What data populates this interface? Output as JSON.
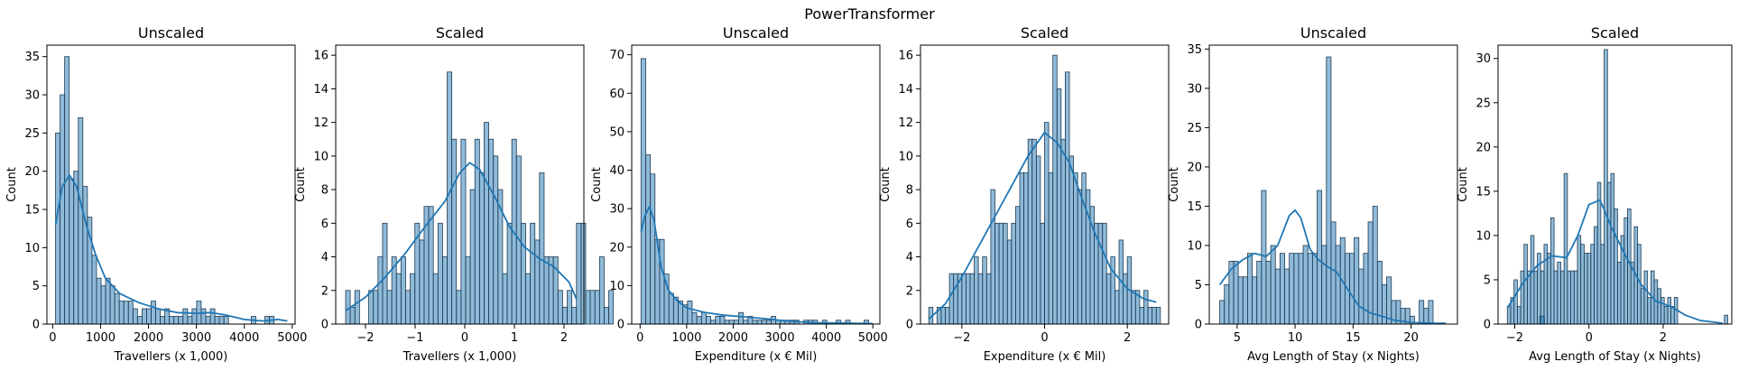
{
  "figure": {
    "suptitle": "PowerTransformer"
  },
  "colors": {
    "bar_fill": "#1f77b4",
    "bar_edge": "#1f3a52",
    "kde": "#1f77b4"
  },
  "chart_data": [
    {
      "type": "bar",
      "title": "Unscaled",
      "xlabel": "Travellers (x 1,000)",
      "ylabel": "Count",
      "xlim": [
        -120,
        5060
      ],
      "ylim": [
        0,
        36.5
      ],
      "xticks": [
        0,
        1000,
        2000,
        3000,
        4000,
        5000
      ],
      "yticks": [
        0,
        5,
        10,
        15,
        20,
        25,
        30,
        35
      ],
      "bin_start": 60,
      "bin_width": 95,
      "counts": [
        25,
        30,
        35,
        19,
        20,
        27,
        18,
        14,
        9,
        6,
        5,
        6,
        5,
        4,
        3,
        3,
        3,
        2,
        1,
        2,
        2,
        3,
        2,
        1,
        2,
        1,
        1,
        1,
        2,
        1,
        2,
        3,
        2,
        1,
        2,
        1,
        1,
        1,
        0,
        0,
        0,
        0,
        0,
        1,
        0,
        0,
        1,
        1
      ],
      "kde": [
        [
          60,
          13
        ],
        [
          200,
          18
        ],
        [
          350,
          19.5
        ],
        [
          500,
          18
        ],
        [
          700,
          13
        ],
        [
          900,
          9
        ],
        [
          1100,
          6
        ],
        [
          1400,
          4
        ],
        [
          1800,
          2.8
        ],
        [
          2200,
          2
        ],
        [
          2600,
          1.5
        ],
        [
          3000,
          1.4
        ],
        [
          3300,
          1.5
        ],
        [
          3600,
          1.2
        ],
        [
          4000,
          0.6
        ],
        [
          4400,
          0.4
        ],
        [
          4700,
          0.6
        ],
        [
          4900,
          0.4
        ]
      ]
    },
    {
      "type": "bar",
      "title": "Scaled",
      "xlabel": "Travellers (x 1,000)",
      "ylabel": "Count",
      "xlim": [
        -2.6,
        2.4
      ],
      "ylim": [
        0,
        16.6
      ],
      "xticks": [
        -2,
        -1,
        0,
        1,
        2
      ],
      "yticks": [
        0,
        2,
        4,
        6,
        8,
        10,
        12,
        14,
        16
      ],
      "bin_start": -2.4,
      "bin_width": 0.093,
      "counts": [
        2,
        1,
        2,
        0,
        0,
        2,
        2,
        4,
        6,
        2,
        4,
        3,
        4,
        2,
        3,
        6,
        5,
        7,
        7,
        3,
        6,
        4,
        15,
        11,
        2,
        11,
        4,
        8,
        11,
        9,
        12,
        11,
        10,
        8,
        3,
        6,
        11,
        10,
        6,
        3,
        6,
        5,
        9,
        4,
        4,
        4,
        2,
        1,
        2,
        1,
        6,
        6,
        2,
        2,
        2,
        4,
        1,
        2
      ],
      "kde": [
        [
          -2.4,
          0.8
        ],
        [
          -2.0,
          1.6
        ],
        [
          -1.6,
          2.8
        ],
        [
          -1.2,
          4.2
        ],
        [
          -0.8,
          5.8
        ],
        [
          -0.4,
          7.3
        ],
        [
          -0.1,
          9
        ],
        [
          0.1,
          9.6
        ],
        [
          0.3,
          9.2
        ],
        [
          0.6,
          7.6
        ],
        [
          0.9,
          5.8
        ],
        [
          1.2,
          4.6
        ],
        [
          1.5,
          3.9
        ],
        [
          1.8,
          3.4
        ],
        [
          2.1,
          2.5
        ],
        [
          2.25,
          1.5
        ]
      ]
    },
    {
      "type": "bar",
      "title": "Unscaled",
      "xlabel": "Expenditure (x € Mil)",
      "ylabel": "Count",
      "xlim": [
        -180,
        5150
      ],
      "ylim": [
        0,
        72.5
      ],
      "xticks": [
        0,
        1000,
        2000,
        3000,
        4000,
        5000
      ],
      "yticks": [
        0,
        10,
        20,
        30,
        40,
        50,
        60,
        70
      ],
      "bin_start": 20,
      "bin_width": 99.8,
      "counts": [
        69,
        44,
        39,
        22,
        22,
        13,
        8,
        7,
        6,
        5,
        6,
        3,
        2,
        3,
        2,
        1,
        2,
        2,
        1,
        1,
        1,
        3,
        1,
        2,
        1,
        1,
        1,
        1,
        2,
        1,
        1,
        1,
        1,
        1,
        0,
        1,
        1,
        1,
        0,
        1,
        0,
        0,
        1,
        0,
        1,
        0,
        0,
        0,
        1
      ],
      "kde": [
        [
          20,
          24
        ],
        [
          100,
          28
        ],
        [
          200,
          30.5
        ],
        [
          300,
          27
        ],
        [
          450,
          15
        ],
        [
          600,
          9
        ],
        [
          800,
          6
        ],
        [
          1000,
          4.2
        ],
        [
          1400,
          3
        ],
        [
          1800,
          2.3
        ],
        [
          2200,
          1.9
        ],
        [
          2600,
          1.5
        ],
        [
          3000,
          1
        ],
        [
          3400,
          0.6
        ],
        [
          3800,
          0.3
        ],
        [
          4200,
          0.3
        ],
        [
          4600,
          0.2
        ],
        [
          5000,
          0.1
        ]
      ]
    },
    {
      "type": "bar",
      "title": "Scaled",
      "xlabel": "Expenditure (x € Mil)",
      "ylabel": "Count",
      "xlim": [
        -3.0,
        3.0
      ],
      "ylim": [
        0,
        16.6
      ],
      "xticks": [
        -2,
        0,
        2
      ],
      "yticks": [
        0,
        2,
        4,
        6,
        8,
        10,
        12,
        14,
        16
      ],
      "bin_start": -2.8,
      "bin_width": 0.1,
      "counts": [
        1,
        0,
        1,
        1,
        1,
        3,
        3,
        3,
        3,
        3,
        3,
        4,
        3,
        4,
        3,
        8,
        6,
        6,
        6,
        5,
        6,
        7,
        9,
        9,
        11,
        11,
        10,
        6,
        12,
        9,
        16,
        14,
        11,
        15,
        10,
        9,
        8,
        9,
        8,
        7,
        6,
        6,
        6,
        3,
        4,
        2,
        5,
        3,
        4,
        2,
        2,
        1,
        2,
        1,
        1,
        1
      ],
      "kde": [
        [
          -2.8,
          0.3
        ],
        [
          -2.4,
          1.2
        ],
        [
          -2.0,
          2.8
        ],
        [
          -1.6,
          4.6
        ],
        [
          -1.2,
          6.4
        ],
        [
          -0.8,
          8.2
        ],
        [
          -0.4,
          10
        ],
        [
          0,
          11.4
        ],
        [
          0.3,
          10.8
        ],
        [
          0.6,
          9.6
        ],
        [
          0.9,
          7.5
        ],
        [
          1.2,
          5.5
        ],
        [
          1.6,
          3.3
        ],
        [
          2.0,
          2.1
        ],
        [
          2.4,
          1.5
        ],
        [
          2.7,
          1.3
        ]
      ]
    },
    {
      "type": "bar",
      "title": "Unscaled",
      "xlabel": "Avg Length of Stay (x Nights)",
      "ylabel": "Count",
      "xlim": [
        2.6,
        24.0
      ],
      "ylim": [
        0,
        35.5
      ],
      "xticks": [
        5,
        10,
        15,
        20
      ],
      "yticks": [
        0,
        5,
        10,
        15,
        20,
        25,
        30,
        35
      ],
      "bin_start": 3.5,
      "bin_width": 0.4,
      "counts": [
        3,
        5,
        8,
        8,
        6,
        6,
        9,
        6,
        8,
        17,
        8,
        10,
        7,
        9,
        7,
        9,
        9,
        9,
        10,
        9,
        9,
        17,
        10,
        34,
        13,
        10,
        11,
        9,
        9,
        11,
        7,
        9,
        13,
        15,
        8,
        5,
        6,
        3,
        3,
        2,
        2,
        1,
        0,
        3,
        2,
        3,
        0,
        0,
        0,
        0,
        0,
        0,
        0,
        0,
        0,
        0,
        0,
        0,
        0,
        0,
        0,
        0,
        0,
        0,
        0,
        0,
        0,
        0,
        0,
        1
      ],
      "kde": [
        [
          3.5,
          5
        ],
        [
          4.5,
          7
        ],
        [
          5.5,
          8.2
        ],
        [
          6.5,
          9
        ],
        [
          7.5,
          8.6
        ],
        [
          8.5,
          10
        ],
        [
          9.5,
          13.8
        ],
        [
          10,
          14.5
        ],
        [
          10.5,
          13.5
        ],
        [
          11.3,
          9.5
        ],
        [
          12,
          8.2
        ],
        [
          12.8,
          7.3
        ],
        [
          13.6,
          6.6
        ],
        [
          14.5,
          4.5
        ],
        [
          15.5,
          2.3
        ],
        [
          16.5,
          1.4
        ],
        [
          17.5,
          1
        ],
        [
          18.5,
          0.5
        ],
        [
          20,
          0.2
        ],
        [
          22,
          0.1
        ],
        [
          23,
          0.1
        ]
      ]
    },
    {
      "type": "bar",
      "title": "Scaled",
      "xlabel": "Avg Length of Stay (x Nights)",
      "ylabel": "Count",
      "xlim": [
        -2.45,
        3.85
      ],
      "ylim": [
        0,
        31.5
      ],
      "xticks": [
        -2,
        0,
        2
      ],
      "yticks": [
        0,
        5,
        10,
        15,
        20,
        25,
        30
      ],
      "bin_start": -2.2,
      "bin_width": 0.09,
      "counts": [
        2,
        3,
        5,
        2,
        6,
        9,
        6,
        10,
        6,
        8,
        6,
        9,
        8,
        12,
        6,
        7,
        6,
        17,
        6,
        6,
        6,
        10,
        9,
        8,
        8,
        9,
        11,
        16,
        9,
        31,
        16,
        17,
        13,
        7,
        10,
        12,
        13,
        7,
        11,
        9,
        4,
        6,
        3,
        6,
        5,
        4,
        3,
        2,
        3,
        2,
        3,
        0,
        0,
        0,
        0,
        0,
        0,
        0,
        0,
        0,
        0,
        0,
        0,
        0,
        0,
        1
      ],
      "kde": [
        [
          -2.2,
          1.8
        ],
        [
          -1.8,
          4.5
        ],
        [
          -1.4,
          6.6
        ],
        [
          -1.0,
          7.7
        ],
        [
          -0.6,
          7.5
        ],
        [
          -0.3,
          10
        ],
        [
          0,
          13.5
        ],
        [
          0.3,
          14
        ],
        [
          0.6,
          11
        ],
        [
          1.0,
          7.6
        ],
        [
          1.4,
          4.5
        ],
        [
          1.8,
          2.6
        ],
        [
          2.2,
          2
        ],
        [
          2.6,
          1
        ],
        [
          3.0,
          0.4
        ],
        [
          3.4,
          0.2
        ],
        [
          3.6,
          0.1
        ]
      ]
    }
  ]
}
